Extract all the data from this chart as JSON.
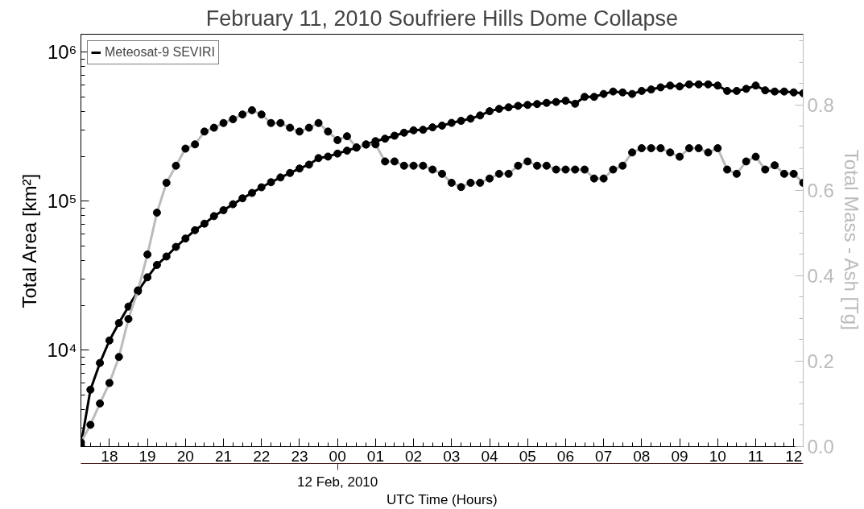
{
  "chart_data": {
    "type": "line",
    "title": "February 11, 2010 Soufriere Hills Dome Collapse",
    "ylabel": "Total Area [km²]",
    "y2label": "Total Mass - Ash [Tg]",
    "xlabel": "UTC Time (Hours)",
    "annotations": [
      {
        "text": "12 Feb, 2010",
        "x": "2010-02-12T00:00"
      }
    ],
    "x": [
      "2010-02-11T17:15",
      "2010-02-11T17:30",
      "2010-02-11T17:45",
      "2010-02-11T18:00",
      "2010-02-11T18:15",
      "2010-02-11T18:30",
      "2010-02-11T18:45",
      "2010-02-11T19:00",
      "2010-02-11T19:15",
      "2010-02-11T19:30",
      "2010-02-11T19:45",
      "2010-02-11T20:00",
      "2010-02-11T20:15",
      "2010-02-11T20:30",
      "2010-02-11T20:45",
      "2010-02-11T21:00",
      "2010-02-11T21:15",
      "2010-02-11T21:30",
      "2010-02-11T21:45",
      "2010-02-11T22:00",
      "2010-02-11T22:15",
      "2010-02-11T22:30",
      "2010-02-11T22:45",
      "2010-02-11T23:00",
      "2010-02-11T23:15",
      "2010-02-11T23:30",
      "2010-02-11T23:45",
      "2010-02-12T00:00",
      "2010-02-12T00:15",
      "2010-02-12T00:30",
      "2010-02-12T00:45",
      "2010-02-12T01:00",
      "2010-02-12T01:15",
      "2010-02-12T01:30",
      "2010-02-12T01:45",
      "2010-02-12T02:00",
      "2010-02-12T02:15",
      "2010-02-12T02:30",
      "2010-02-12T02:45",
      "2010-02-12T03:00",
      "2010-02-12T03:15",
      "2010-02-12T03:30",
      "2010-02-12T03:45",
      "2010-02-12T04:00",
      "2010-02-12T04:15",
      "2010-02-12T04:30",
      "2010-02-12T04:45",
      "2010-02-12T05:00",
      "2010-02-12T05:15",
      "2010-02-12T05:30",
      "2010-02-12T05:45",
      "2010-02-12T06:00",
      "2010-02-12T06:15",
      "2010-02-12T06:30",
      "2010-02-12T06:45",
      "2010-02-12T07:00",
      "2010-02-12T07:15",
      "2010-02-12T07:30",
      "2010-02-12T07:45",
      "2010-02-12T08:00",
      "2010-02-12T08:15",
      "2010-02-12T08:30",
      "2010-02-12T08:45",
      "2010-02-12T09:00",
      "2010-02-12T09:15",
      "2010-02-12T09:30",
      "2010-02-12T09:45",
      "2010-02-12T10:00",
      "2010-02-12T10:15",
      "2010-02-12T10:30",
      "2010-02-12T10:45",
      "2010-02-12T11:00",
      "2010-02-12T11:15",
      "2010-02-12T11:30",
      "2010-02-12T11:45",
      "2010-02-12T12:00",
      "2010-02-12T12:15"
    ],
    "series": [
      {
        "name": "Meteosat-9 SEVIRI",
        "color": "#000000",
        "values": [
          2300,
          5420,
          8200,
          11600,
          15200,
          19600,
          24800,
          30800,
          37300,
          42500,
          49300,
          56100,
          63800,
          70600,
          79300,
          86900,
          95300,
          104500,
          113500,
          123900,
          134000,
          144200,
          154500,
          165600,
          175800,
          194600,
          199100,
          208600,
          218300,
          228600,
          239500,
          253000,
          262600,
          274900,
          288000,
          298800,
          301500,
          312900,
          321500,
          335300,
          346000,
          357800,
          376000,
          401500,
          416600,
          426500,
          436400,
          442500,
          448700,
          456900,
          463300,
          472000,
          450800,
          501200,
          501200,
          524500,
          544500,
          537000,
          524500,
          549500,
          562000,
          580700,
          597000,
          588800,
          608100,
          608100,
          608100,
          597000,
          549500,
          549500,
          567500,
          597000,
          554600,
          544500,
          544500,
          537000,
          529700
        ]
      },
      {
        "color": "#bbbbbb",
        "axis": "y2",
        "values": [
          0.01,
          0.051,
          0.101,
          0.149,
          0.21,
          0.299,
          0.366,
          0.45,
          0.548,
          0.618,
          0.658,
          0.698,
          0.708,
          0.738,
          0.747,
          0.758,
          0.767,
          0.778,
          0.788,
          0.778,
          0.758,
          0.758,
          0.747,
          0.738,
          0.747,
          0.758,
          0.738,
          0.718,
          0.727,
          0.701,
          0.708,
          0.708,
          0.668,
          0.668,
          0.658,
          0.658,
          0.658,
          0.649,
          0.639,
          0.618,
          0.608,
          0.618,
          0.618,
          0.628,
          0.639,
          0.639,
          0.658,
          0.668,
          0.658,
          0.658,
          0.649,
          0.649,
          0.649,
          0.649,
          0.628,
          0.628,
          0.649,
          0.658,
          0.689,
          0.699,
          0.699,
          0.699,
          0.689,
          0.679,
          0.699,
          0.699,
          0.689,
          0.699,
          0.649,
          0.639,
          0.668,
          0.679,
          0.649,
          0.659,
          0.639,
          0.639,
          0.618
        ]
      }
    ],
    "xlim": [
      "2010-02-11T17:15",
      "2010-02-12T12:15"
    ],
    "xticks": [
      {
        "value": "2010-02-11T18:00",
        "label": "18"
      },
      {
        "value": "2010-02-11T19:00",
        "label": "19"
      },
      {
        "value": "2010-02-11T20:00",
        "label": "20"
      },
      {
        "value": "2010-02-11T21:00",
        "label": "21"
      },
      {
        "value": "2010-02-11T22:00",
        "label": "22"
      },
      {
        "value": "2010-02-11T23:00",
        "label": "23"
      },
      {
        "value": "2010-02-12T00:00",
        "label": "00"
      },
      {
        "value": "2010-02-12T01:00",
        "label": "01"
      },
      {
        "value": "2010-02-12T02:00",
        "label": "02"
      },
      {
        "value": "2010-02-12T03:00",
        "label": "03"
      },
      {
        "value": "2010-02-12T04:00",
        "label": "04"
      },
      {
        "value": "2010-02-12T05:00",
        "label": "05"
      },
      {
        "value": "2010-02-12T06:00",
        "label": "06"
      },
      {
        "value": "2010-02-12T07:00",
        "label": "07"
      },
      {
        "value": "2010-02-12T08:00",
        "label": "08"
      },
      {
        "value": "2010-02-12T09:00",
        "label": "09"
      },
      {
        "value": "2010-02-12T10:00",
        "label": "10"
      },
      {
        "value": "2010-02-12T11:00",
        "label": "11"
      },
      {
        "value": "2010-02-12T12:00",
        "label": "12"
      }
    ],
    "ylim": [
      2250,
      1320000
    ],
    "yticks": [
      {
        "value": 10000,
        "label": "10⁴"
      },
      {
        "value": 100000,
        "label": "10⁵"
      },
      {
        "value": 1000000,
        "label": "10⁶"
      }
    ],
    "y2lim": [
      0,
      0.966
    ],
    "y2ticks": [
      {
        "value": 0,
        "label": "0.0"
      },
      {
        "value": 0.2,
        "label": "0.2"
      },
      {
        "value": 0.4,
        "label": "0.4"
      },
      {
        "value": 0.6,
        "label": "0.6"
      },
      {
        "value": 0.8,
        "label": "0.8"
      }
    ],
    "log": "y",
    "grid": false,
    "legend": "top left",
    "marker": "circle",
    "line_style": "solid"
  }
}
